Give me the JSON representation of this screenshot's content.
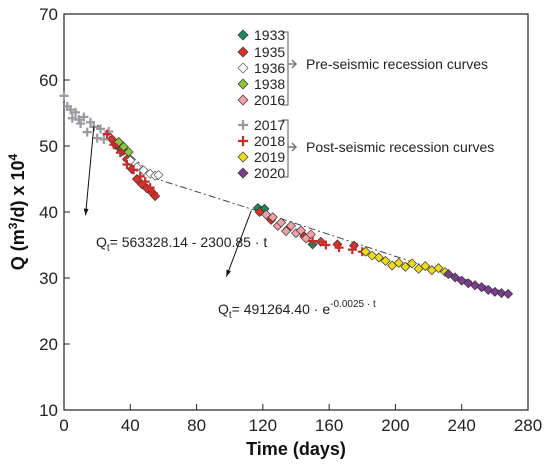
{
  "chart_data": {
    "type": "scatter",
    "xlabel": "Time (days)",
    "ylabel_main": "Q (m",
    "ylabel_sup1": "3",
    "ylabel_mid": "/d) x 10",
    "ylabel_sup2": "4",
    "xlim": [
      0,
      280
    ],
    "ylim": [
      10,
      70
    ],
    "xticks": [
      0,
      40,
      80,
      120,
      160,
      200,
      240,
      280
    ],
    "yticks": [
      10,
      20,
      30,
      40,
      50,
      60,
      70
    ],
    "grid": false,
    "legend_groups": [
      {
        "label": "Pre-seismic recession curves",
        "entries": [
          "1933",
          "1935",
          "1936",
          "1938",
          "2016"
        ]
      },
      {
        "label": "Post-seismic recession curves",
        "entries": [
          "2017",
          "2018",
          "2019",
          "2020"
        ]
      }
    ],
    "series": [
      {
        "name": "1933",
        "marker": "diamond",
        "color": "#1a8a5a",
        "x": [
          31,
          34,
          36,
          117,
          119,
          121,
          150
        ],
        "y": [
          50.2,
          49.6,
          49.3,
          40.6,
          40.2,
          40.5,
          35.1
        ]
      },
      {
        "name": "1935",
        "marker": "diamond",
        "color": "#d8322c",
        "x": [
          29,
          32,
          35,
          38,
          41,
          44,
          47,
          50,
          53,
          55,
          118,
          125,
          135,
          145,
          155,
          165,
          175
        ],
        "y": [
          51.0,
          50.2,
          49.2,
          48.0,
          46.5,
          45.0,
          44.2,
          43.6,
          43.0,
          42.4,
          40.0,
          38.8,
          37.4,
          36.3,
          35.5,
          35.1,
          34.9
        ]
      },
      {
        "name": "1936",
        "marker": "diamond",
        "color": "#ffffff",
        "x": [
          40,
          44,
          48,
          52,
          55,
          57
        ],
        "y": [
          47.8,
          46.8,
          46.3,
          45.8,
          45.5,
          45.6
        ]
      },
      {
        "name": "1938",
        "marker": "diamond",
        "color": "#8cc43c",
        "x": [
          33,
          36,
          39
        ],
        "y": [
          50.6,
          49.9,
          49.1
        ]
      },
      {
        "name": "2016",
        "marker": "diamond",
        "color": "#f2a1a8",
        "x": [
          122,
          126,
          129,
          131,
          134,
          137,
          140,
          143,
          146,
          149
        ],
        "y": [
          39.6,
          39.2,
          37.9,
          38.4,
          37.1,
          37.9,
          36.8,
          37.2,
          36.0,
          36.6
        ]
      },
      {
        "name": "2017",
        "marker": "plus",
        "color": "#9a9aa0",
        "x": [
          0,
          2,
          4,
          5,
          7,
          9,
          10,
          12,
          14,
          16,
          18,
          20,
          22,
          24,
          27
        ],
        "y": [
          57.6,
          56.0,
          55.5,
          54.2,
          55.1,
          54.0,
          53.4,
          54.4,
          52.1,
          53.6,
          52.9,
          51.2,
          52.6,
          51.0,
          52.2
        ]
      },
      {
        "name": "2018",
        "marker": "plus",
        "color": "#c42d2a",
        "x": [
          26,
          30,
          34,
          38,
          42,
          46,
          49,
          52,
          54,
          150,
          158,
          166,
          174,
          180
        ],
        "y": [
          51.8,
          50.2,
          49.0,
          47.2,
          46.4,
          45.4,
          44.6,
          43.7,
          42.8,
          35.6,
          35.0,
          34.6,
          34.3,
          34.0
        ]
      },
      {
        "name": "2019",
        "marker": "diamond",
        "color": "#eedc18",
        "x": [
          182,
          186,
          190,
          194,
          198,
          202,
          206,
          210,
          214,
          218,
          222,
          226,
          230
        ],
        "y": [
          34.0,
          33.4,
          33.1,
          32.6,
          31.9,
          32.3,
          31.7,
          32.2,
          31.4,
          31.8,
          31.2,
          31.5,
          30.9
        ]
      },
      {
        "name": "2020",
        "marker": "diamond",
        "color": "#7a3e8c",
        "x": [
          232,
          236,
          240,
          244,
          248,
          252,
          256,
          260,
          264,
          268
        ],
        "y": [
          30.6,
          30.1,
          29.6,
          29.2,
          28.9,
          28.6,
          28.2,
          27.9,
          27.7,
          27.6
        ]
      }
    ],
    "fit_line": {
      "style": "dash-dot",
      "x": [
        20,
        56,
        120,
        270
      ],
      "y": [
        53.2,
        45.0,
        39.9,
        27.5
      ]
    },
    "annotations": [
      {
        "text_main": "Q",
        "text_sub": "t",
        "text_rest": "= 563328.14 - 2300.85 · t",
        "arrow_from": [
          18,
          53.0
        ],
        "arrow_to": [
          13,
          39.5
        ]
      },
      {
        "text_main": "Q",
        "text_sub": "t",
        "text_rest": "= 491264.40 · e",
        "text_sup": "-0.0025 · t",
        "arrow_from": [
          113,
          40.2
        ],
        "arrow_to": [
          98,
          30.2
        ]
      }
    ]
  }
}
